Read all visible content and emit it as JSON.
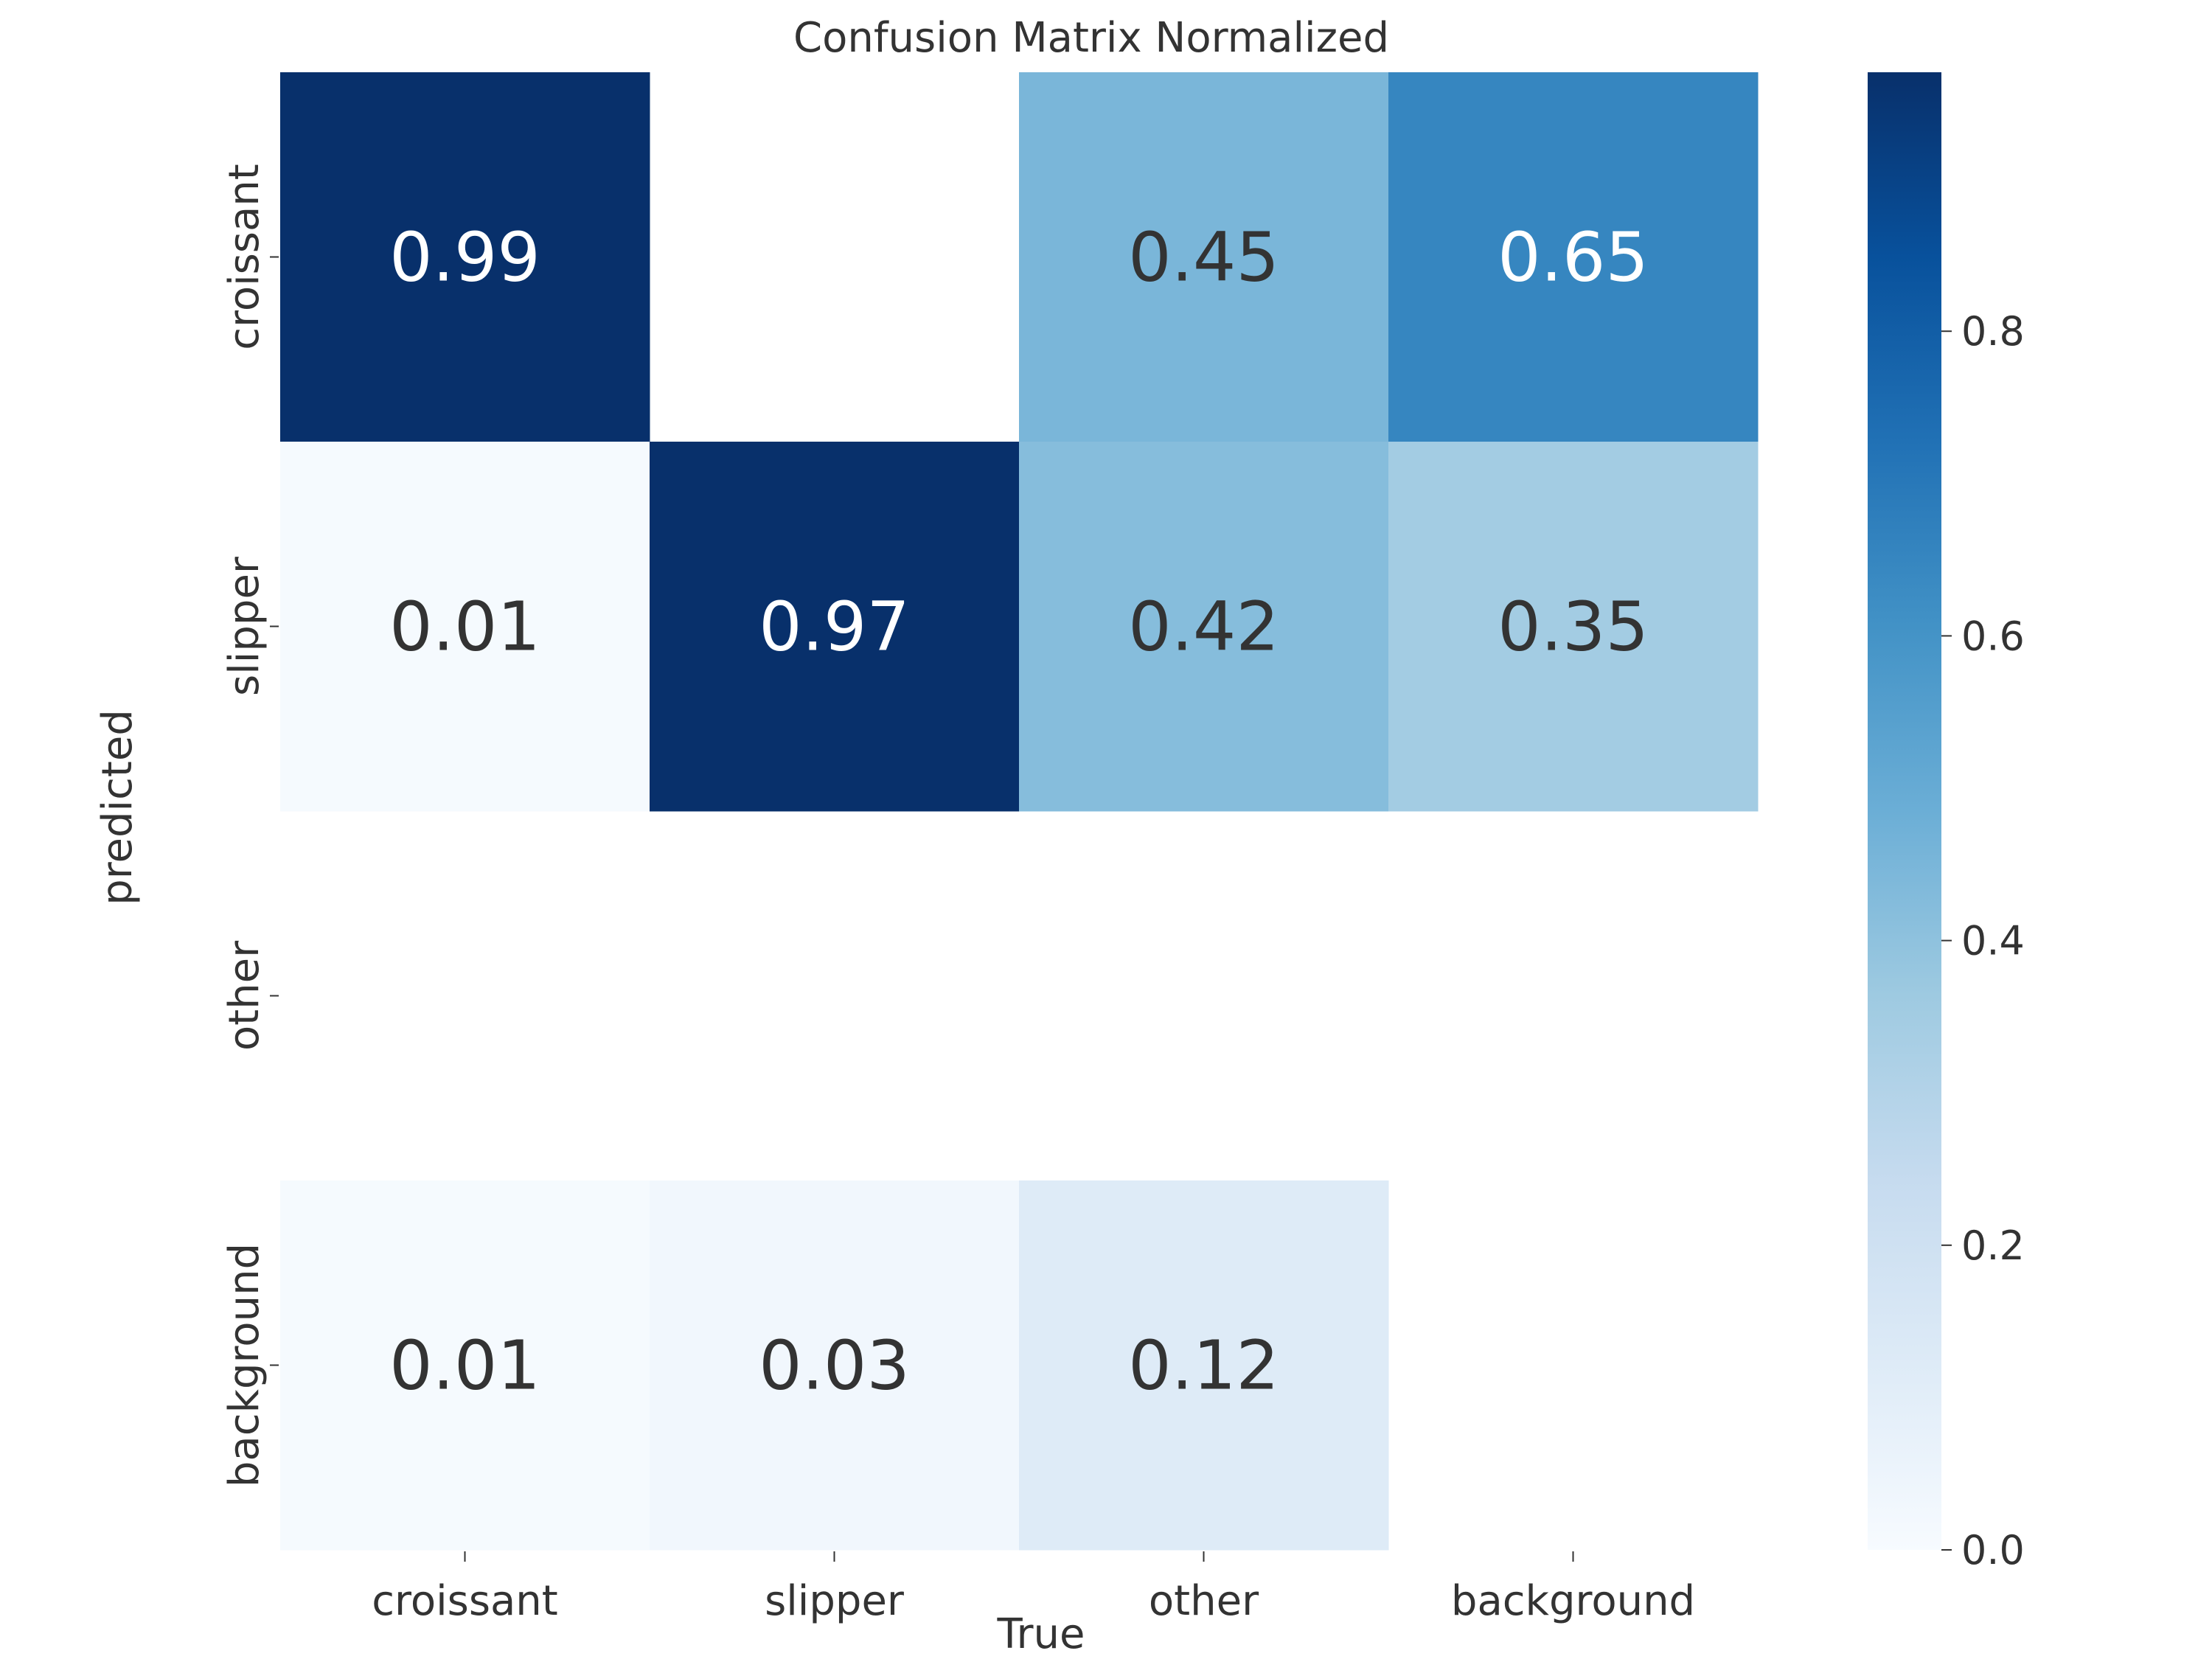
{
  "chart_data": {
    "type": "heatmap",
    "title": "Confusion Matrix Normalized",
    "xlabel": "True",
    "ylabel": "predicted",
    "x_categories": [
      "croissant",
      "slipper",
      "other",
      "background"
    ],
    "y_categories": [
      "croissant",
      "slipper",
      "other",
      "background"
    ],
    "values": [
      [
        0.99,
        null,
        0.45,
        0.65
      ],
      [
        0.01,
        0.97,
        0.42,
        0.35
      ],
      [
        null,
        null,
        null,
        null
      ],
      [
        0.01,
        0.03,
        0.12,
        null
      ]
    ],
    "colorscale": "Blues",
    "colorbar": {
      "range": [
        0,
        0.97
      ],
      "ticks": [
        0.0,
        0.2,
        0.4,
        0.6,
        0.8
      ],
      "tick_labels": [
        "0.0",
        "0.2",
        "0.4",
        "0.6",
        "0.8"
      ]
    }
  }
}
